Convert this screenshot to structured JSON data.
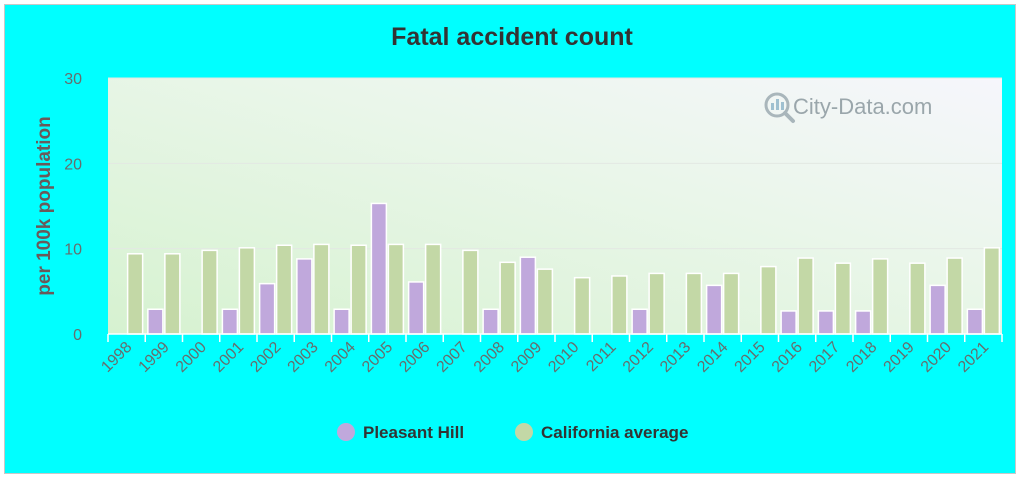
{
  "chart_data": {
    "type": "bar",
    "title": "Fatal accident count",
    "xlabel": "",
    "ylabel": "per 100k population",
    "ylim": [
      0,
      30
    ],
    "yticks": [
      0,
      10,
      20,
      30
    ],
    "grid": true,
    "legend_position": "bottom-center",
    "categories": [
      "1998",
      "1999",
      "2000",
      "2001",
      "2002",
      "2003",
      "2004",
      "2005",
      "2006",
      "2007",
      "2008",
      "2009",
      "2010",
      "2011",
      "2012",
      "2013",
      "2014",
      "2015",
      "2016",
      "2017",
      "2018",
      "2019",
      "2020",
      "2021"
    ],
    "series": [
      {
        "name": "Pleasant Hill",
        "color": "#c0a8dc",
        "values": [
          null,
          2.9,
          null,
          2.9,
          5.9,
          8.8,
          2.9,
          15.3,
          6.1,
          null,
          2.9,
          9.0,
          null,
          null,
          2.9,
          null,
          5.7,
          null,
          2.7,
          2.7,
          2.7,
          null,
          5.7,
          2.9
        ]
      },
      {
        "name": "California average",
        "color": "#c3d8a6",
        "values": [
          9.4,
          9.4,
          9.8,
          10.1,
          10.4,
          10.5,
          10.4,
          10.5,
          10.5,
          9.8,
          8.4,
          7.6,
          6.6,
          6.8,
          7.1,
          7.1,
          7.1,
          7.9,
          8.9,
          8.3,
          8.8,
          8.3,
          8.9,
          10.1
        ]
      }
    ]
  },
  "watermark": {
    "text": "City-Data.com",
    "icon": "magnifier-chart-icon"
  }
}
